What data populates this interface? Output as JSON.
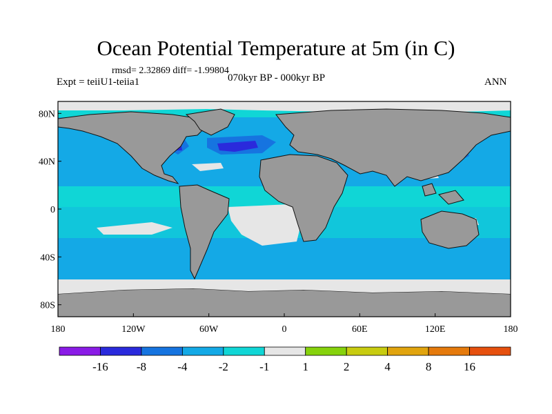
{
  "title": "Ocean Potential Temperature at 5m (in C)",
  "stats_line": "rmsd= 2.32869 diff= -1.99804",
  "experiment_label": "Expt = teiiU1-teiia1",
  "period_label": "070kyr BP - 000kyr BP",
  "season_label": "ANN",
  "y_axis": {
    "ticks": [
      {
        "value": 80,
        "label": "80N"
      },
      {
        "value": 40,
        "label": "40N"
      },
      {
        "value": 0,
        "label": "0"
      },
      {
        "value": -40,
        "label": "40S"
      },
      {
        "value": -80,
        "label": "80S"
      }
    ]
  },
  "x_axis": {
    "ticks": [
      {
        "value": -180,
        "label": "180"
      },
      {
        "value": -120,
        "label": "120W"
      },
      {
        "value": -60,
        "label": "60W"
      },
      {
        "value": 0,
        "label": "0"
      },
      {
        "value": 60,
        "label": "60E"
      },
      {
        "value": 120,
        "label": "120E"
      },
      {
        "value": 180,
        "label": "180"
      }
    ]
  },
  "colorbar": {
    "bins": [
      {
        "color": "#8a1be6"
      },
      {
        "color": "#2a2adc"
      },
      {
        "color": "#1674e0"
      },
      {
        "color": "#14a9e6"
      },
      {
        "color": "#10d6d6"
      },
      {
        "color": "#e6e6e6"
      },
      {
        "color": "#86d20c"
      },
      {
        "color": "#c8cc10"
      },
      {
        "color": "#e1a40e"
      },
      {
        "color": "#e57a0c"
      },
      {
        "color": "#e6500e"
      }
    ],
    "labels": [
      "-16",
      "-8",
      "-4",
      "-2",
      "-1",
      "1",
      "2",
      "4",
      "8",
      "16"
    ]
  },
  "colors": {
    "land": "#999999",
    "sea_ice": "#e6e6e6",
    "ocean_minus1": "#10d6d6",
    "ocean_minus2": "#14a9e6",
    "ocean_minus4": "#1674e0",
    "ocean_minus8": "#2a2adc"
  }
}
